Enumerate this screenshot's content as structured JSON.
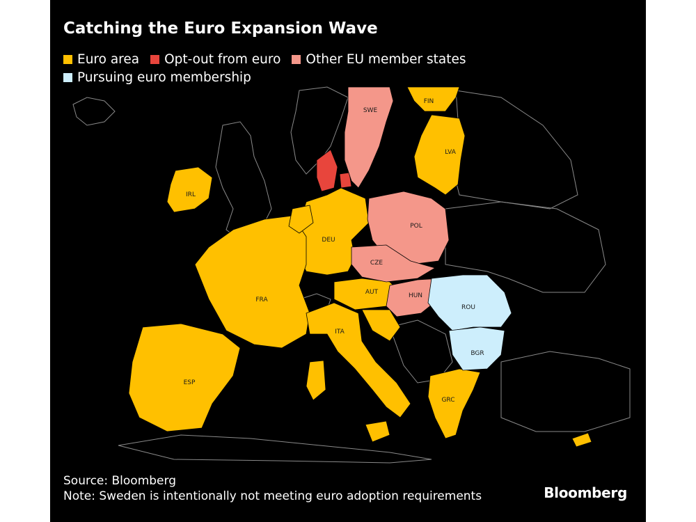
{
  "title": "Catching the Euro Expansion Wave",
  "legend": [
    {
      "label": "Euro area",
      "color": "#ffc000"
    },
    {
      "label": "Opt-out from euro",
      "color": "#e8453c"
    },
    {
      "label": "Other EU member states",
      "color": "#f4978a"
    },
    {
      "label": "Pursuing euro membership",
      "color": "#cdeefc"
    }
  ],
  "countries": {
    "FIN": {
      "label": "FIN",
      "status": "Euro area"
    },
    "SWE": {
      "label": "SWE",
      "status": "Other EU member states"
    },
    "LVA": {
      "label": "LVA",
      "status": "Euro area"
    },
    "IRL": {
      "label": "IRL",
      "status": "Euro area"
    },
    "DEU": {
      "label": "DEU",
      "status": "Euro area"
    },
    "POL": {
      "label": "POL",
      "status": "Other EU member states"
    },
    "CZE": {
      "label": "CZE",
      "status": "Other EU member states"
    },
    "FRA": {
      "label": "FRA",
      "status": "Euro area"
    },
    "AUT": {
      "label": "AUT",
      "status": "Euro area"
    },
    "HUN": {
      "label": "HUN",
      "status": "Other EU member states"
    },
    "ROU": {
      "label": "ROU",
      "status": "Pursuing euro membership"
    },
    "ITA": {
      "label": "ITA",
      "status": "Euro area"
    },
    "BGR": {
      "label": "BGR",
      "status": "Pursuing euro membership"
    },
    "ESP": {
      "label": "ESP",
      "status": "Euro area"
    },
    "GRC": {
      "label": "GRC",
      "status": "Euro area"
    },
    "DNK": {
      "label": "",
      "status": "Opt-out from euro"
    }
  },
  "colors": {
    "euro": "#ffc000",
    "optout": "#e8453c",
    "other_eu": "#f4978a",
    "pursuing": "#cdeefc",
    "background": "#000000",
    "border": "#8a8a8a"
  },
  "source": "Source: Bloomberg",
  "note": "Note: Sweden is intentionally not meeting euro adoption requirements",
  "brand": "Bloomberg"
}
